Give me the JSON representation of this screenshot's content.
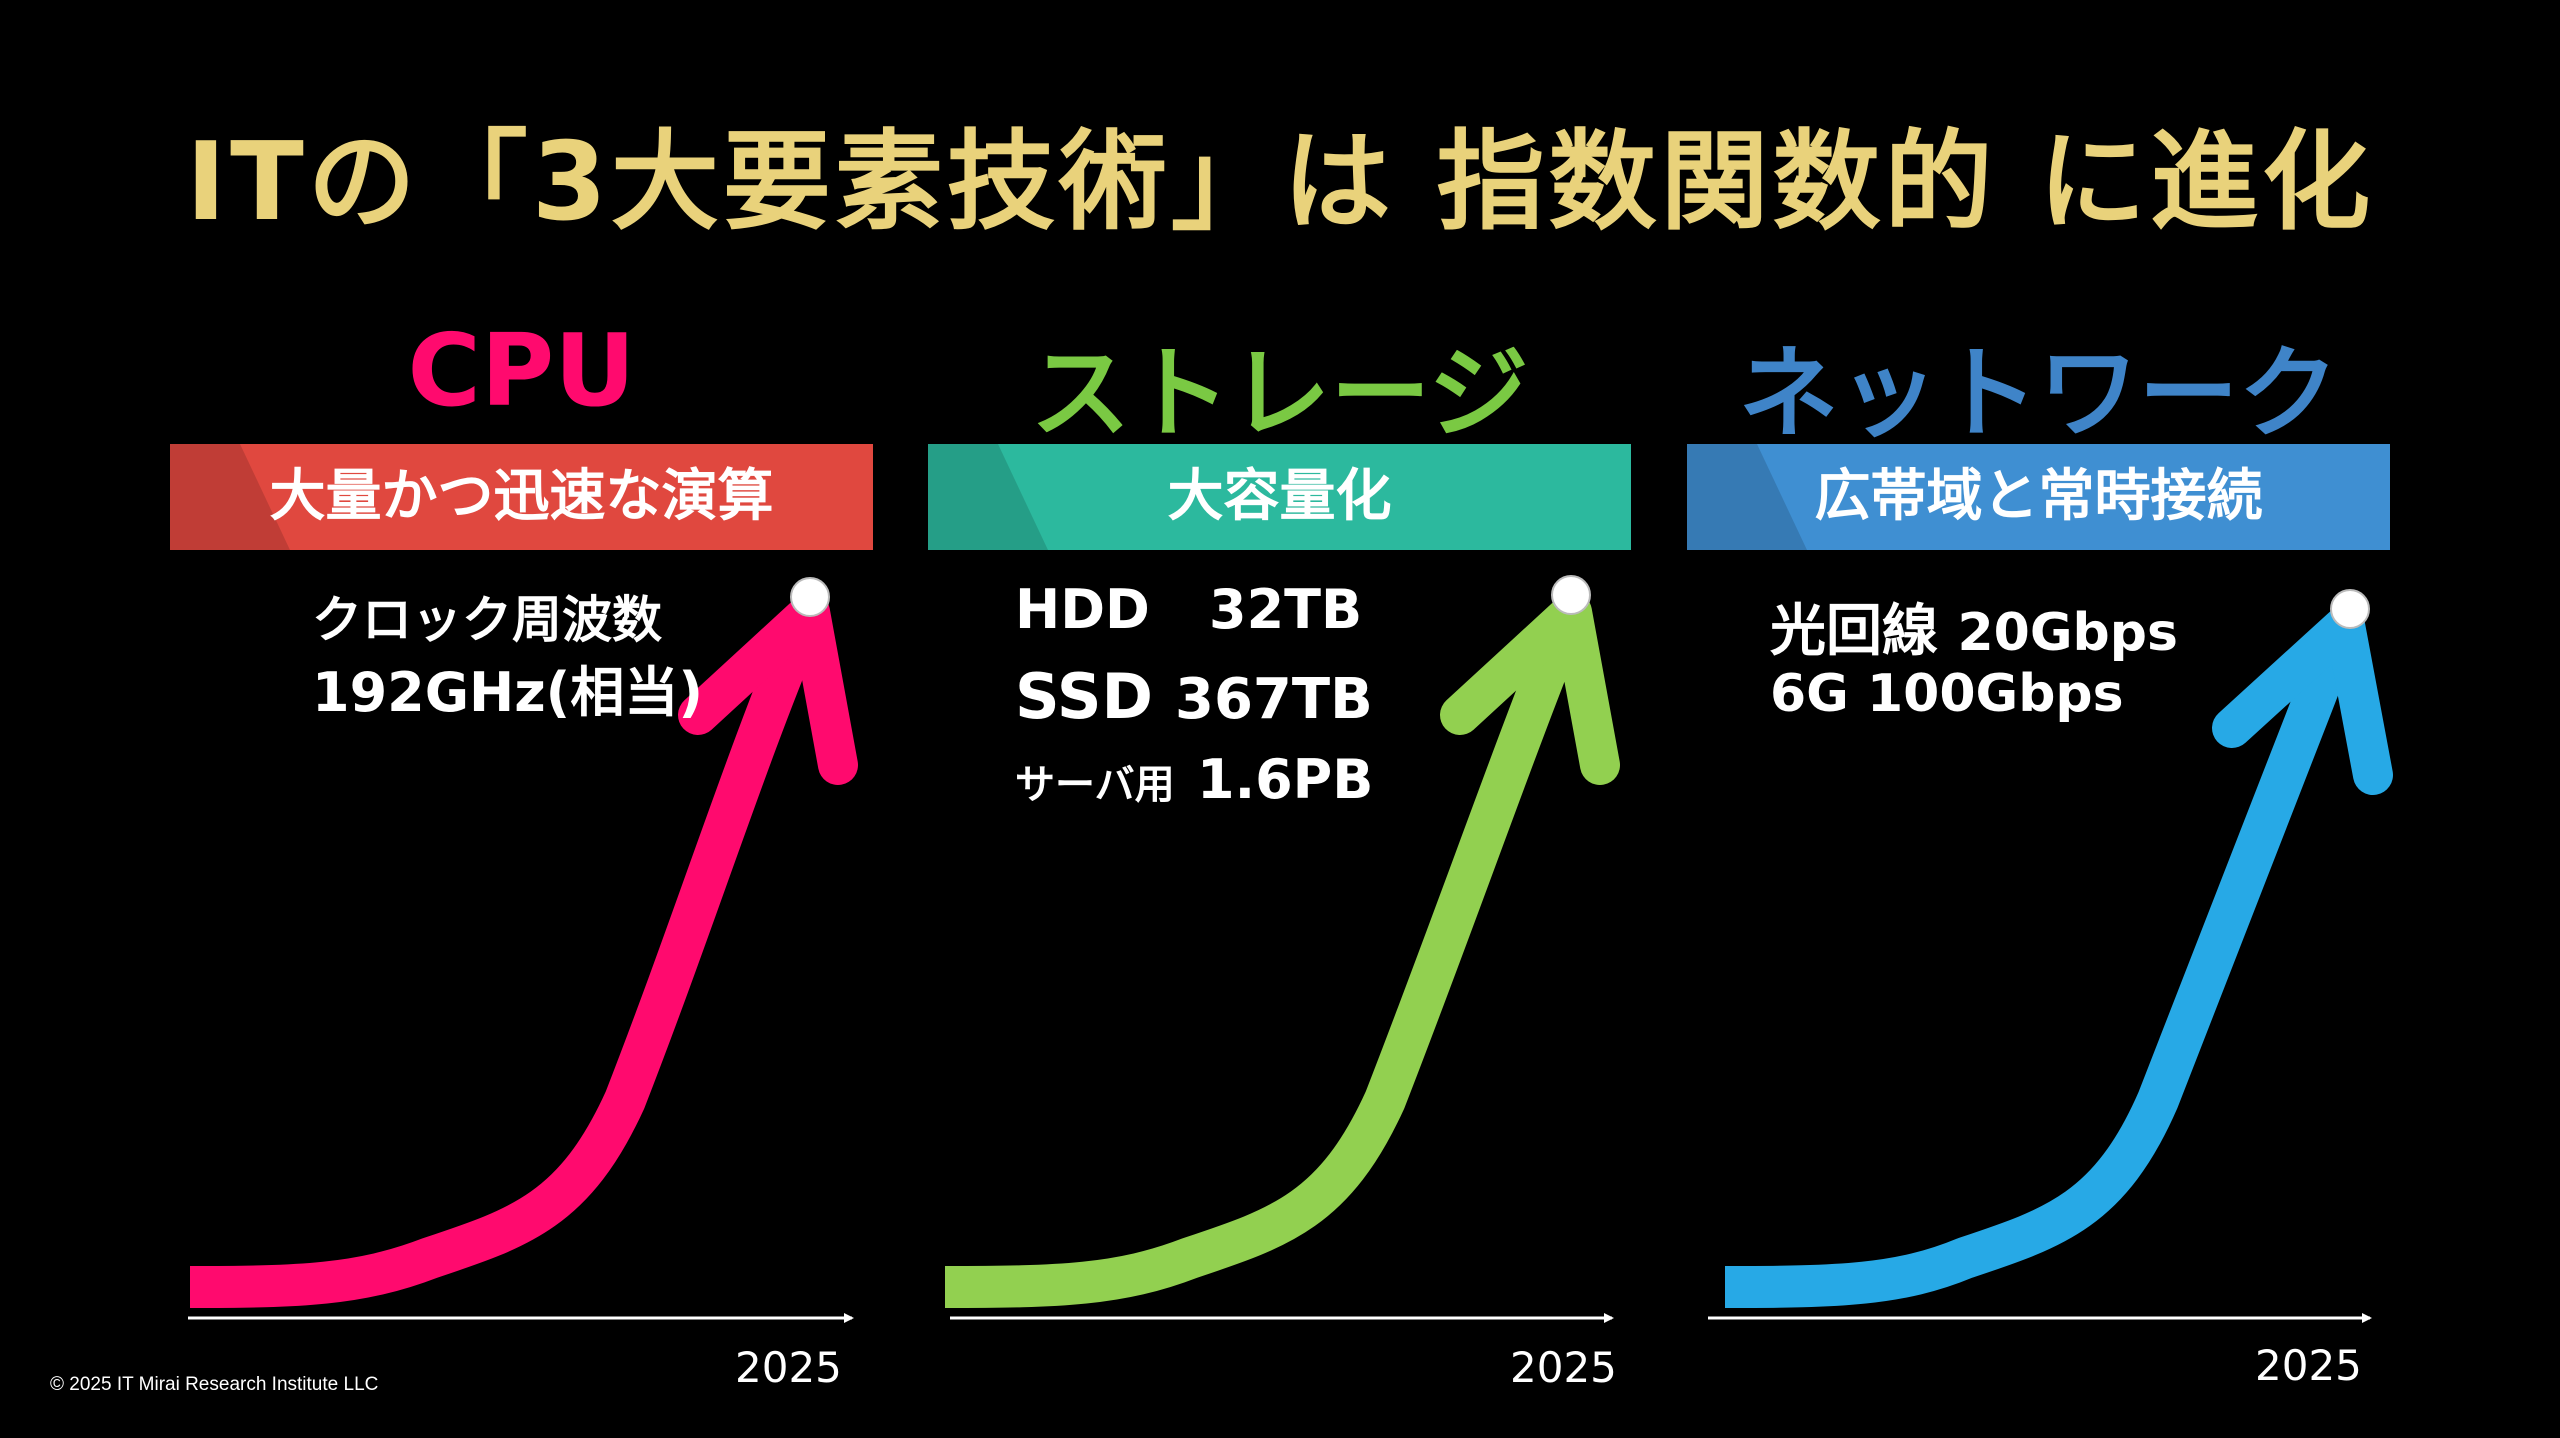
{
  "title": "ITの「3大要素技術」は 指数関数的 に進化",
  "colors": {
    "title": "#E9D27B",
    "cpu": "#FF0A6E",
    "storage": "#7AC943",
    "network": "#3F84C8",
    "cpu_banner": "#E0483F",
    "storage_banner": "#2CB99E",
    "network_banner": "#3F8FD2",
    "cpu_curve": "#FF0A6E",
    "storage_curve": "#92D050",
    "network_curve": "#27A9E6"
  },
  "columns": [
    {
      "heading": "CPU",
      "banner": "大量かつ迅速な演算",
      "specs": [
        {
          "text": "クロック周波数"
        },
        {
          "text": "192GHz(相当)"
        }
      ],
      "year": "2025"
    },
    {
      "heading": "ストレージ",
      "banner": "大容量化",
      "specs": [
        {
          "label": "HDD",
          "value": "32TB"
        },
        {
          "label": "SSD",
          "value": "367TB"
        },
        {
          "label": "サーバ用",
          "value": "1.6PB"
        }
      ],
      "year": "2025"
    },
    {
      "heading": "ネットワーク",
      "banner": "広帯域と常時接続",
      "specs": [
        {
          "label": "光回線",
          "value": "20Gbps"
        },
        {
          "label": "6G",
          "value": "100Gbps"
        }
      ],
      "year": "2025"
    }
  ],
  "icons": [
    "growth-arrow-icon",
    "time-axis-arrow-icon",
    "endpoint-dot-icon"
  ],
  "copyright": "© 2025 IT Mirai Research Institute  LLC"
}
